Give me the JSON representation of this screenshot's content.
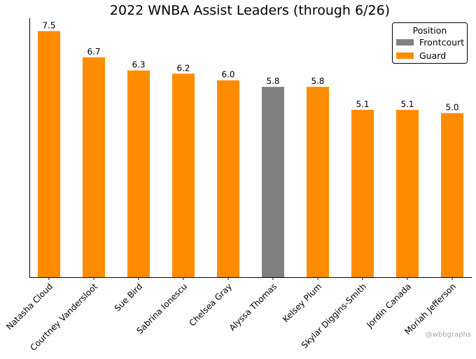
{
  "chart_data": {
    "type": "bar",
    "title": "2022 WNBA Assist Leaders (through 6/26)",
    "xlabel": "",
    "ylabel": "",
    "categories": [
      "Natasha Cloud",
      "Courtney Vandersloot",
      "Sue Bird",
      "Sabrina Ionescu",
      "Chelsea Gray",
      "Alyssa Thomas",
      "Kelsey Plum",
      "Skylar Diggins-Smith",
      "Jordin Canada",
      "Moriah Jefferson"
    ],
    "values": [
      7.5,
      6.7,
      6.3,
      6.2,
      6.0,
      5.8,
      5.8,
      5.1,
      5.1,
      5.0
    ],
    "value_labels": [
      "7.5",
      "6.7",
      "6.3",
      "6.2",
      "6.0",
      "5.8",
      "5.8",
      "5.1",
      "5.1",
      "5.0"
    ],
    "positions": [
      "Guard",
      "Guard",
      "Guard",
      "Guard",
      "Guard",
      "Frontcourt",
      "Guard",
      "Guard",
      "Guard",
      "Guard"
    ],
    "ylim": [
      0,
      7.85
    ],
    "grid": false,
    "legend": {
      "title": "Position",
      "placement": "top-right",
      "entries": [
        {
          "name": "Frontcourt",
          "color": "#808080"
        },
        {
          "name": "Guard",
          "color": "#ff8c00"
        }
      ]
    },
    "annotation": "@wbbgraphs"
  }
}
